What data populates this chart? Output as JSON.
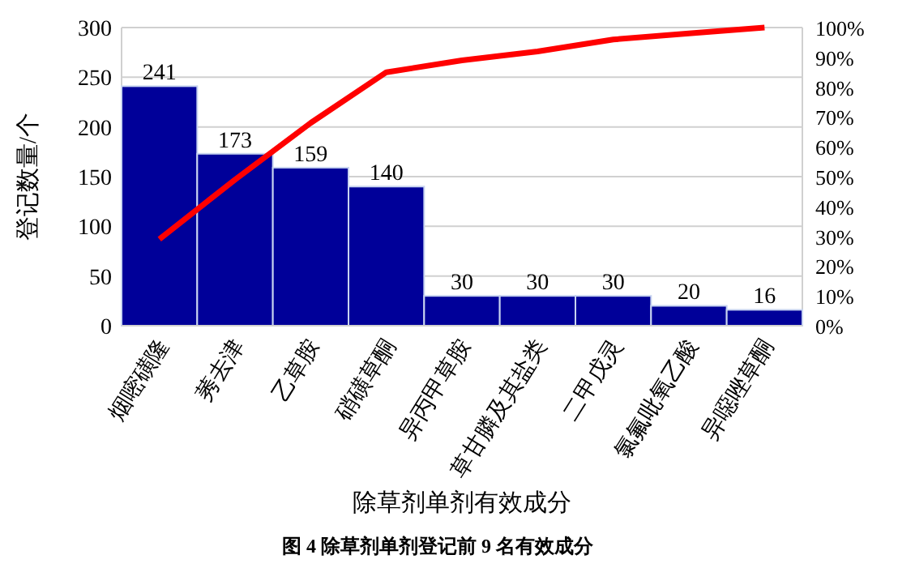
{
  "chart_data": {
    "type": "bar",
    "xlabel": "除草剂单剂有效成分",
    "ylabel": "登记数量/个",
    "categories": [
      "烟嘧磺隆",
      "莠去津",
      "乙草胺",
      "硝磺草酮",
      "异丙甲草胺",
      "草甘膦及其盐类",
      "二甲戊灵",
      "氯氟吡氧乙酸",
      "异噁唑草酮"
    ],
    "series": [
      {
        "color": "#000099",
        "values": [
          241,
          173,
          159,
          140,
          30,
          30,
          30,
          20,
          16
        ],
        "value_labels": [
          "241",
          "173",
          "159",
          "140",
          "30",
          "30",
          "30",
          "20",
          "16"
        ]
      },
      {
        "type": "line",
        "axis": "y2",
        "color": "#ff0000",
        "values": [
          29,
          49,
          68,
          85,
          89,
          92,
          96,
          98,
          100
        ]
      }
    ],
    "ylim": [
      0,
      300
    ],
    "yticks": [
      0,
      50,
      100,
      150,
      200,
      250,
      300
    ],
    "y2lim": [
      0,
      100
    ],
    "y2ticks": [
      {
        "value": 0,
        "label": "0%"
      },
      {
        "value": 10,
        "label": "10%"
      },
      {
        "value": 20,
        "label": "20%"
      },
      {
        "value": 30,
        "label": "30%"
      },
      {
        "value": 40,
        "label": "40%"
      },
      {
        "value": 50,
        "label": "50%"
      },
      {
        "value": 60,
        "label": "60%"
      },
      {
        "value": 70,
        "label": "70%"
      },
      {
        "value": 80,
        "label": "80%"
      },
      {
        "value": 90,
        "label": "90%"
      },
      {
        "value": 100,
        "label": "100%"
      }
    ],
    "grid": "y",
    "marker": "none",
    "annotations": [
      "图 4  除草剂单剂登记前 9 名有效成分"
    ]
  }
}
